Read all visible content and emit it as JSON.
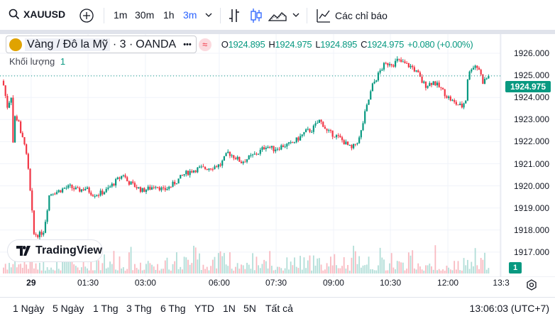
{
  "toolbar": {
    "symbol": "XAUUSD",
    "intervals": [
      "1m",
      "30m",
      "1h",
      "3m"
    ],
    "active_interval": "3m",
    "indicators_label": "Các chỉ báo"
  },
  "legend": {
    "name": "Vàng / Đô la Mỹ",
    "interval": "· 3 ·",
    "exchange": "OANDA",
    "more": "•••",
    "O_label": "O",
    "O": "1924.895",
    "H_label": "H",
    "H": "1924.975",
    "L_label": "L",
    "L": "1924.895",
    "C_label": "C",
    "C": "1924.975",
    "change": "+0.080 (+0.00%)",
    "volume_label": "Khối lượng",
    "volume_value": "1"
  },
  "colors": {
    "up": "#089981",
    "down": "#f23645",
    "accent": "#2962ff"
  },
  "logo_text": "TradingView",
  "last_price": "1924.975",
  "volume_badge": "1",
  "bottom": {
    "ranges": [
      "1 Ngày",
      "5 Ngày",
      "1 Thg",
      "3 Thg",
      "6 Thg",
      "YTD",
      "1N",
      "5N",
      "Tất cả"
    ],
    "clock": "13:06:03 (UTC+7)"
  },
  "chart_data": {
    "type": "candlestick",
    "interval_minutes": 3,
    "bars": 256,
    "ylim": [
      1916.6,
      1926.6
    ],
    "y_ticks": [
      "1926.000",
      "1925.000",
      "1924.000",
      "1923.000",
      "1922.000",
      "1921.000",
      "1920.000",
      "1919.000",
      "1918.000",
      "1917.000"
    ],
    "x_ticks": [
      {
        "bar": 14.5,
        "label": "29"
      },
      {
        "bar": 44.4,
        "label": "01:30"
      },
      {
        "bar": 74.6,
        "label": "03:00"
      },
      {
        "bar": 113.4,
        "label": "06:00"
      },
      {
        "bar": 143.3,
        "label": "07:30"
      },
      {
        "bar": 173.5,
        "label": "09:00"
      },
      {
        "bar": 203.4,
        "label": "10:30"
      },
      {
        "bar": 233.6,
        "label": "12:00"
      },
      {
        "bar": 261.6,
        "label": "13:3"
      }
    ],
    "close_path": [
      [
        0,
        1924.55
      ],
      [
        2,
        1923.59
      ],
      [
        4,
        1924.07
      ],
      [
        5,
        1921.98
      ],
      [
        6,
        1923.11
      ],
      [
        8,
        1922.95
      ],
      [
        9,
        1922.3
      ],
      [
        11,
        1921.98
      ],
      [
        13,
        1920.69
      ],
      [
        15,
        1918.77
      ],
      [
        16,
        1917.8
      ],
      [
        19,
        1917.8
      ],
      [
        21,
        1917.96
      ],
      [
        22,
        1918.44
      ],
      [
        24,
        1919.57
      ],
      [
        26,
        1919.73
      ],
      [
        28,
        1919.73
      ],
      [
        32,
        1919.89
      ],
      [
        35,
        1919.95
      ],
      [
        39,
        1919.79
      ],
      [
        43,
        1919.89
      ],
      [
        47,
        1919.63
      ],
      [
        50,
        1919.63
      ],
      [
        54,
        1919.79
      ],
      [
        58,
        1920.12
      ],
      [
        62,
        1920.44
      ],
      [
        63,
        1920.53
      ],
      [
        65,
        1920.21
      ],
      [
        69,
        1919.99
      ],
      [
        73,
        1919.79
      ],
      [
        77,
        1919.89
      ],
      [
        80,
        1920.05
      ],
      [
        84,
        1919.79
      ],
      [
        88,
        1919.99
      ],
      [
        91,
        1920.21
      ],
      [
        95,
        1920.53
      ],
      [
        99,
        1920.69
      ],
      [
        103,
        1920.79
      ],
      [
        106,
        1920.79
      ],
      [
        110,
        1920.86
      ],
      [
        114,
        1920.95
      ],
      [
        118,
        1921.5
      ],
      [
        121,
        1921.34
      ],
      [
        125,
        1921.08
      ],
      [
        129,
        1921.27
      ],
      [
        134,
        1921.5
      ],
      [
        138,
        1921.82
      ],
      [
        142,
        1921.66
      ],
      [
        147,
        1921.82
      ],
      [
        151,
        1921.88
      ],
      [
        155,
        1922.14
      ],
      [
        159,
        1922.46
      ],
      [
        162,
        1922.53
      ],
      [
        166,
        1922.95
      ],
      [
        168,
        1922.78
      ],
      [
        170,
        1922.46
      ],
      [
        174,
        1922.3
      ],
      [
        177,
        1922.14
      ],
      [
        181,
        1921.82
      ],
      [
        183,
        1921.66
      ],
      [
        187,
        1922.14
      ],
      [
        188,
        1922.46
      ],
      [
        190,
        1923.27
      ],
      [
        192,
        1923.91
      ],
      [
        194,
        1924.55
      ],
      [
        196,
        1924.87
      ],
      [
        198,
        1925.2
      ],
      [
        200,
        1925.45
      ],
      [
        203,
        1925.58
      ],
      [
        205,
        1925.52
      ],
      [
        207,
        1925.68
      ],
      [
        211,
        1925.52
      ],
      [
        215,
        1925.36
      ],
      [
        218,
        1925.04
      ],
      [
        220,
        1924.71
      ],
      [
        222,
        1924.55
      ],
      [
        226,
        1924.71
      ],
      [
        230,
        1924.39
      ],
      [
        233,
        1924.07
      ],
      [
        237,
        1923.75
      ],
      [
        241,
        1923.59
      ],
      [
        243,
        1923.91
      ],
      [
        244,
        1924.87
      ],
      [
        246,
        1925.36
      ],
      [
        248,
        1925.45
      ],
      [
        250,
        1925.29
      ],
      [
        252,
        1924.71
      ],
      [
        254,
        1924.87
      ],
      [
        255,
        1924.975
      ]
    ],
    "last_close": 1924.975
  }
}
